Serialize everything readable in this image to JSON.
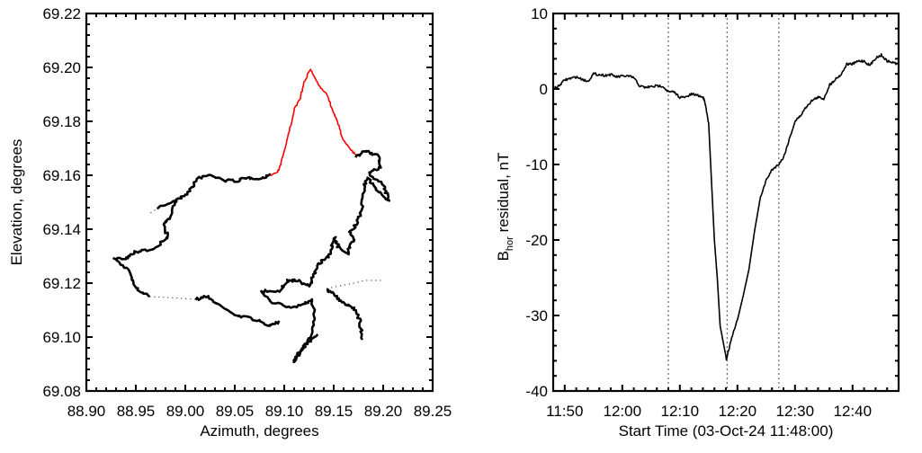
{
  "chart_data": [
    {
      "type": "line",
      "title": "",
      "xlabel": "Azimuth, degrees",
      "ylabel": "Elevation, degrees",
      "xlim": [
        88.9,
        89.25
      ],
      "ylim": [
        69.08,
        69.22
      ],
      "xticks": [
        "88.90",
        "88.95",
        "89.00",
        "89.05",
        "89.10",
        "89.15",
        "89.20",
        "89.25"
      ],
      "yticks": [
        "69.08",
        "69.10",
        "69.12",
        "69.14",
        "69.16",
        "69.18",
        "69.20",
        "69.22"
      ],
      "grid": false,
      "series": [
        {
          "name": "track-upper-left",
          "color": "#000000",
          "style": "solid",
          "points": [
            [
              88.973,
              69.148
            ],
            [
              88.992,
              69.151
            ],
            [
              89.004,
              69.154
            ],
            [
              89.013,
              69.159
            ],
            [
              89.025,
              69.16
            ],
            [
              89.04,
              69.158
            ],
            [
              89.052,
              69.158
            ],
            [
              89.064,
              69.159
            ],
            [
              89.079,
              69.159
            ],
            [
              89.085,
              69.16
            ]
          ]
        },
        {
          "name": "track-highlight",
          "color": "#ff0000",
          "style": "solid",
          "points": [
            [
              89.0855,
              69.16
            ],
            [
              89.093,
              69.1611
            ],
            [
              89.0961,
              69.1639
            ],
            [
              89.1036,
              69.1739
            ],
            [
              89.1097,
              69.1839
            ],
            [
              89.1158,
              69.1883
            ],
            [
              89.1203,
              69.1944
            ],
            [
              89.1264,
              69.1994
            ],
            [
              89.1309,
              69.1961
            ],
            [
              89.137,
              69.1922
            ],
            [
              89.143,
              69.19
            ],
            [
              89.1491,
              69.1839
            ],
            [
              89.1552,
              69.1783
            ],
            [
              89.1597,
              69.1728
            ],
            [
              89.1673,
              69.1694
            ],
            [
              89.1733,
              69.1672
            ]
          ]
        },
        {
          "name": "track-left-side",
          "color": "#000000",
          "style": "solid",
          "points": [
            [
              88.992,
              69.151
            ],
            [
              88.985,
              69.145
            ],
            [
              88.979,
              69.142
            ],
            [
              88.982,
              69.137
            ],
            [
              88.97,
              69.133
            ],
            [
              88.955,
              69.132
            ],
            [
              88.946,
              69.131
            ],
            [
              88.94,
              69.129
            ],
            [
              88.928,
              69.129
            ],
            [
              88.943,
              69.125
            ],
            [
              88.949,
              69.118
            ],
            [
              88.964,
              69.115
            ]
          ]
        },
        {
          "name": "track-gap-left",
          "color": "#000000",
          "style": "dotted",
          "points": [
            [
              88.964,
              69.115
            ],
            [
              88.99,
              69.1145
            ],
            [
              89.01,
              69.114
            ]
          ]
        },
        {
          "name": "track-gap-start",
          "color": "#000000",
          "style": "dotted",
          "points": [
            [
              88.965,
              69.146
            ],
            [
              88.973,
              69.148
            ]
          ]
        },
        {
          "name": "track-bottom",
          "color": "#000000",
          "style": "solid",
          "points": [
            [
              89.01,
              69.114
            ],
            [
              89.022,
              69.115
            ],
            [
              89.034,
              69.112
            ],
            [
              89.052,
              69.108
            ],
            [
              89.067,
              69.107
            ],
            [
              89.085,
              69.104
            ],
            [
              89.095,
              69.106
            ]
          ]
        },
        {
          "name": "track-right",
          "color": "#000000",
          "style": "solid",
          "points": [
            [
              89.173,
              69.167
            ],
            [
              89.182,
              69.169
            ],
            [
              89.195,
              69.167
            ],
            [
              89.198,
              69.163
            ],
            [
              89.185,
              69.161
            ],
            [
              89.201,
              69.156
            ],
            [
              89.205,
              69.151
            ],
            [
              89.195,
              69.154
            ],
            [
              89.185,
              69.159
            ],
            [
              89.181,
              69.156
            ],
            [
              89.178,
              69.147
            ],
            [
              89.173,
              69.142
            ],
            [
              89.167,
              69.139
            ],
            [
              89.17,
              69.136
            ],
            [
              89.164,
              69.131
            ],
            [
              89.155,
              69.133
            ],
            [
              89.151,
              69.137
            ],
            [
              89.146,
              69.131
            ],
            [
              89.142,
              69.129
            ],
            [
              89.134,
              69.127
            ],
            [
              89.129,
              69.122
            ],
            [
              89.125,
              69.119
            ],
            [
              89.113,
              69.121
            ],
            [
              89.104,
              69.121
            ],
            [
              89.095,
              69.117
            ],
            [
              89.076,
              69.117
            ],
            [
              89.088,
              69.113
            ],
            [
              89.104,
              69.111
            ],
            [
              89.119,
              69.112
            ],
            [
              89.128,
              69.114
            ],
            [
              89.131,
              69.107
            ],
            [
              89.128,
              69.101
            ],
            [
              89.119,
              69.096
            ],
            [
              89.11,
              69.091
            ],
            [
              89.113,
              69.094
            ],
            [
              89.125,
              69.098
            ],
            [
              89.134,
              69.101
            ]
          ]
        },
        {
          "name": "track-right-branch",
          "color": "#000000",
          "style": "solid",
          "points": [
            [
              89.143,
              69.118
            ],
            [
              89.149,
              69.116
            ],
            [
              89.158,
              69.113
            ],
            [
              89.17,
              69.111
            ],
            [
              89.176,
              69.107
            ],
            [
              89.179,
              69.099
            ]
          ]
        },
        {
          "name": "track-gap-right",
          "color": "#000000",
          "style": "dotted",
          "points": [
            [
              89.143,
              69.118
            ],
            [
              89.17,
              69.12
            ],
            [
              89.182,
              69.121
            ],
            [
              89.201,
              69.121
            ]
          ]
        }
      ]
    },
    {
      "type": "line",
      "title": "",
      "xlabel": "Start Time (03-Oct-24 11:48:00)",
      "ylabel": {
        "main": "B",
        "sub": "hor",
        "rest": " residual, nT"
      },
      "x_units": "minutes after 11:48",
      "xlim": [
        0,
        60
      ],
      "ylim": [
        -40,
        10
      ],
      "xticks": [
        {
          "at": 2,
          "label": "11:50"
        },
        {
          "at": 12,
          "label": "12:00"
        },
        {
          "at": 22,
          "label": "12:10"
        },
        {
          "at": 32,
          "label": "12:20"
        },
        {
          "at": 42,
          "label": "12:30"
        },
        {
          "at": 52,
          "label": "12:40"
        }
      ],
      "yticks": [
        "-40",
        "-30",
        "-20",
        "-10",
        "0",
        "10"
      ],
      "vlines": [
        20,
        30.2,
        39.2
      ],
      "grid": false,
      "series": [
        {
          "name": "B_hor residual",
          "color": "#000000",
          "x": [
            0,
            1,
            2,
            3,
            4,
            5,
            6,
            7,
            8,
            9,
            10,
            11,
            12,
            13,
            14,
            15,
            16,
            17,
            18,
            19,
            20,
            21,
            22,
            23,
            24,
            25,
            26,
            26.3,
            27,
            28,
            28.5,
            29,
            30.1,
            31,
            32,
            33,
            34,
            35,
            36,
            37,
            38,
            39,
            40,
            41,
            42,
            43,
            44,
            45,
            46,
            47,
            48,
            49,
            50,
            51,
            52,
            53,
            54,
            55,
            56,
            57,
            58,
            59,
            60
          ],
          "y": [
            0,
            0.4,
            1.2,
            1.4,
            1.6,
            1.3,
            1.0,
            2.0,
            1.9,
            1.8,
            1.9,
            1.6,
            1.7,
            1.7,
            1.5,
            0.4,
            0.2,
            0.3,
            0.4,
            0.4,
            -0.4,
            -0.4,
            -1.1,
            -1.1,
            -0.7,
            -0.8,
            -1.1,
            -1.5,
            -4.5,
            -20,
            -25,
            -31.4,
            -35.8,
            -33,
            -30.6,
            -27.4,
            -23.9,
            -18.7,
            -14.3,
            -12.1,
            -10.7,
            -10.1,
            -9.1,
            -6.7,
            -4.3,
            -3.5,
            -2.3,
            -1.5,
            -1.1,
            -1.3,
            0.5,
            1.3,
            1.9,
            3.3,
            3.3,
            3.7,
            3.7,
            3.1,
            4.1,
            4.5,
            3.7,
            3.5,
            3.3
          ]
        }
      ]
    }
  ]
}
